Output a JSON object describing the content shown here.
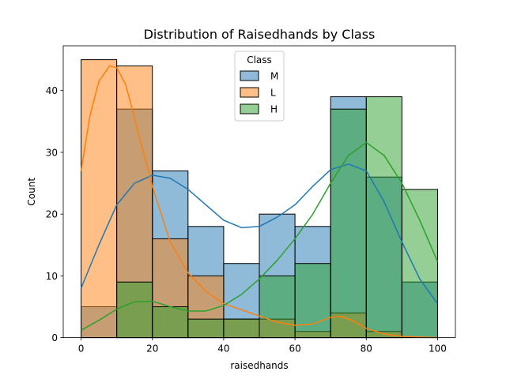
{
  "chart_data": {
    "type": "histogram",
    "title": "Distribution of Raisedhands by Class",
    "xlabel": "raisedhands",
    "ylabel": "Count",
    "xlim": [
      -5,
      105
    ],
    "ylim": [
      0,
      47.25
    ],
    "xticks": [
      0,
      20,
      40,
      60,
      80,
      100
    ],
    "yticks": [
      0,
      10,
      20,
      30,
      40
    ],
    "grid": false,
    "legend": {
      "title": "Class",
      "placement": "upper center"
    },
    "bins": [
      0,
      10,
      20,
      30,
      40,
      50,
      60,
      70,
      80,
      90,
      100
    ],
    "series": [
      {
        "name": "M",
        "color": "#1f77b4",
        "counts": [
          5,
          37,
          27,
          18,
          12,
          20,
          18,
          39,
          26,
          9
        ],
        "kde": [
          [
            0,
            8
          ],
          [
            5,
            15
          ],
          [
            10,
            21.5
          ],
          [
            15,
            25
          ],
          [
            20,
            26.3
          ],
          [
            25,
            25.8
          ],
          [
            30,
            24
          ],
          [
            35,
            21.5
          ],
          [
            40,
            19
          ],
          [
            45,
            17.8
          ],
          [
            50,
            18
          ],
          [
            55,
            19.5
          ],
          [
            60,
            21.5
          ],
          [
            65,
            24.5
          ],
          [
            70,
            27.2
          ],
          [
            75,
            28.1
          ],
          [
            80,
            27
          ],
          [
            85,
            22
          ],
          [
            90,
            15.5
          ],
          [
            95,
            9.5
          ],
          [
            100,
            5.5
          ]
        ]
      },
      {
        "name": "L",
        "color": "#ff7f0e",
        "counts": [
          45,
          44,
          16,
          10,
          3,
          3,
          1,
          4,
          1,
          0
        ],
        "kde": [
          [
            0,
            27
          ],
          [
            2.5,
            36
          ],
          [
            5,
            41.5
          ],
          [
            8,
            44
          ],
          [
            10,
            43.7
          ],
          [
            12.5,
            41
          ],
          [
            15,
            35.5
          ],
          [
            20,
            24.5
          ],
          [
            25,
            15.5
          ],
          [
            30,
            10.5
          ],
          [
            35,
            7.5
          ],
          [
            40,
            5.5
          ],
          [
            45,
            4.5
          ],
          [
            50,
            3.5
          ],
          [
            55,
            2.5
          ],
          [
            60,
            2
          ],
          [
            65,
            2.2
          ],
          [
            70,
            3.3
          ],
          [
            73,
            3.4
          ],
          [
            76,
            2.8
          ],
          [
            80,
            1.5
          ],
          [
            85,
            0.6
          ],
          [
            90,
            0.2
          ],
          [
            100,
            0
          ]
        ]
      },
      {
        "name": "H",
        "color": "#2ca02c",
        "counts": [
          0,
          9,
          5,
          3,
          3,
          10,
          12,
          37,
          39,
          24
        ],
        "kde": [
          [
            0,
            1.2
          ],
          [
            5,
            2.8
          ],
          [
            10,
            4.6
          ],
          [
            15,
            5.8
          ],
          [
            20,
            5.9
          ],
          [
            25,
            5
          ],
          [
            30,
            4.3
          ],
          [
            35,
            4.3
          ],
          [
            40,
            5.2
          ],
          [
            45,
            7
          ],
          [
            50,
            9.5
          ],
          [
            55,
            12.5
          ],
          [
            60,
            16
          ],
          [
            65,
            20
          ],
          [
            70,
            25
          ],
          [
            75,
            29.5
          ],
          [
            80,
            31.6
          ],
          [
            85,
            29.5
          ],
          [
            90,
            25
          ],
          [
            95,
            19
          ],
          [
            100,
            12.3
          ]
        ]
      }
    ]
  }
}
